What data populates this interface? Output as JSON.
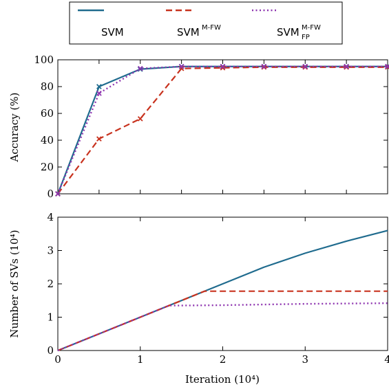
{
  "legend": {
    "entries": [
      {
        "base": "SVM",
        "sup": "",
        "sub": "",
        "color": "#1f6b8e",
        "dash": "solid"
      },
      {
        "base": "SVM",
        "sup": "M-FW",
        "sub": "",
        "color": "#c8321e",
        "dash": "dashed"
      },
      {
        "base": "SVM",
        "sup": "M-FW",
        "sub": "FP",
        "color": "#8e35b0",
        "dash": "dotted"
      }
    ]
  },
  "chart_data": [
    {
      "type": "line",
      "ylabel": "Accuracy (%)",
      "xlabel": "",
      "xlim": [
        0,
        4
      ],
      "ylim": [
        0,
        100
      ],
      "yticks": [
        "0",
        "20",
        "40",
        "60",
        "80",
        "100"
      ],
      "xticks_show_labels": false,
      "markers": "x",
      "series": [
        {
          "name": "SVM",
          "color": "#1f6b8e",
          "dash": "solid",
          "x": [
            0,
            0.5,
            1,
            1.5,
            2,
            2.5,
            3,
            3.5,
            4
          ],
          "y": [
            0,
            80,
            93,
            95,
            95,
            95,
            95,
            95,
            95
          ]
        },
        {
          "name": "SVM M-FW",
          "color": "#c8321e",
          "dash": "dashed",
          "x": [
            0,
            0.5,
            1,
            1.5,
            2,
            2.5,
            3,
            3.5,
            4
          ],
          "y": [
            0,
            41,
            56,
            93.5,
            94,
            94.5,
            94.5,
            94.5,
            94.5
          ]
        },
        {
          "name": "SVM FP M-FW",
          "color": "#8e35b0",
          "dash": "dotted",
          "x": [
            0,
            0.5,
            1,
            1.5,
            2,
            2.5,
            3,
            3.5,
            4
          ],
          "y": [
            0,
            75,
            93.5,
            95,
            95,
            95,
            95,
            95,
            95
          ]
        }
      ]
    },
    {
      "type": "line",
      "ylabel": "Number of SVs (10⁴)",
      "xlabel": "Iteration (10⁴)",
      "xlim": [
        0,
        4
      ],
      "ylim": [
        0,
        4
      ],
      "yticks": [
        "0",
        "1",
        "2",
        "3",
        "4"
      ],
      "xticks": [
        "0",
        "1",
        "2",
        "3",
        "4"
      ],
      "series": [
        {
          "name": "SVM",
          "color": "#1f6b8e",
          "dash": "solid",
          "x": [
            0,
            0.5,
            1,
            1.5,
            2,
            2.5,
            3,
            3.5,
            4
          ],
          "y": [
            0,
            0.5,
            1.0,
            1.5,
            2.0,
            2.5,
            2.92,
            3.28,
            3.6
          ]
        },
        {
          "name": "SVM M-FW",
          "color": "#c8321e",
          "dash": "dashed",
          "x": [
            0,
            0.5,
            1,
            1.5,
            1.78,
            2,
            2.5,
            3,
            3.5,
            4
          ],
          "y": [
            0,
            0.5,
            1.0,
            1.5,
            1.78,
            1.78,
            1.78,
            1.78,
            1.78,
            1.78
          ]
        },
        {
          "name": "SVM FP M-FW",
          "color": "#8e35b0",
          "dash": "dotted",
          "x": [
            0,
            0.5,
            1,
            1.35,
            1.5,
            2,
            2.5,
            3,
            3.5,
            4
          ],
          "y": [
            0,
            0.5,
            1.0,
            1.35,
            1.35,
            1.36,
            1.38,
            1.4,
            1.41,
            1.42
          ]
        }
      ]
    }
  ]
}
